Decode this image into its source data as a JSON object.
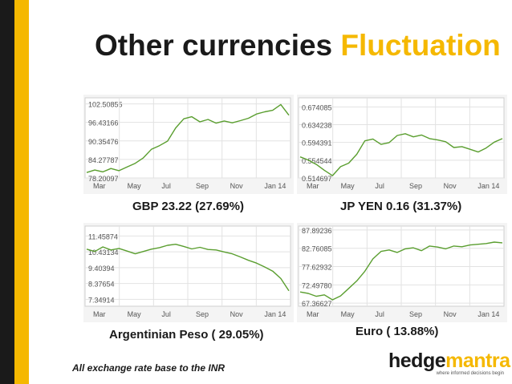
{
  "title": {
    "main": "Other currencies",
    "accent": "Fluctuation"
  },
  "footnote": "All exchange rate base to the INR",
  "logo": {
    "part1": "hedge",
    "part2": "mantra",
    "tagline": "where informed decisions begin"
  },
  "colors": {
    "accent": "#f5b800",
    "dark": "#1a1a1a",
    "line": "#5a9e2f"
  },
  "chart_data": [
    {
      "type": "line",
      "caption": "GBP 23.22 (27.69%)",
      "yticks": [
        "102.50855",
        "96.43166",
        "90.35476",
        "84.27787",
        "78.20097"
      ],
      "ytick_values": [
        102.50855,
        96.43166,
        90.35476,
        84.27787,
        78.20097
      ],
      "xticks": [
        "Mar",
        "May",
        "Jul",
        "Sep",
        "Nov",
        "Jan 14"
      ],
      "ylim": [
        78.2,
        104.5
      ],
      "series": [
        {
          "values": [
            80.0,
            80.8,
            80.2,
            81.3,
            80.6,
            81.8,
            83.0,
            84.8,
            87.6,
            88.8,
            90.3,
            94.6,
            97.6,
            98.3,
            96.6,
            97.4,
            96.2,
            96.9,
            96.3,
            97.0,
            97.8,
            99.2,
            99.9,
            100.4,
            102.3,
            98.8
          ]
        }
      ]
    },
    {
      "type": "line",
      "caption": "JP YEN 0.16 (31.37%)",
      "yticks": [
        "0.674085",
        "0.634238",
        "0.594391",
        "0.554544",
        "0.514697"
      ],
      "ytick_values": [
        0.674085,
        0.634238,
        0.594391,
        0.554544,
        0.514697
      ],
      "xticks": [
        "Mar",
        "May",
        "Jul",
        "Sep",
        "Nov",
        "Jan 14"
      ],
      "ylim": [
        0.5147,
        0.6945
      ],
      "series": [
        {
          "values": [
            0.562,
            0.555,
            0.545,
            0.532,
            0.52,
            0.54,
            0.548,
            0.568,
            0.598,
            0.602,
            0.59,
            0.594,
            0.61,
            0.614,
            0.607,
            0.611,
            0.603,
            0.6,
            0.596,
            0.583,
            0.585,
            0.579,
            0.573,
            0.582,
            0.595,
            0.603
          ]
        }
      ]
    },
    {
      "type": "line",
      "caption": "Argentinian Peso ( 29.05%)",
      "yticks": [
        "11.45874",
        "10.43134",
        "9.40394",
        "8.37654",
        "7.34914"
      ],
      "ytick_values": [
        11.45874,
        10.43134,
        9.40394,
        8.37654,
        7.34914
      ],
      "xticks": [
        "Mar",
        "May",
        "Jul",
        "Sep",
        "Nov",
        "Jan 14"
      ],
      "ylim": [
        6.9,
        12.1
      ],
      "series": [
        {
          "values": [
            10.6,
            10.45,
            10.75,
            10.55,
            10.65,
            10.48,
            10.3,
            10.45,
            10.6,
            10.7,
            10.85,
            10.92,
            10.78,
            10.62,
            10.72,
            10.58,
            10.55,
            10.42,
            10.3,
            10.1,
            9.88,
            9.7,
            9.45,
            9.18,
            8.7,
            7.9
          ]
        }
      ]
    },
    {
      "type": "line",
      "caption": "Euro ( 13.88%)",
      "yticks": [
        "87.89236",
        "82.76085",
        "77.62932",
        "72.49780",
        "67.36627"
      ],
      "ytick_values": [
        87.89236,
        82.76085,
        77.62932,
        72.4978,
        67.36627
      ],
      "xticks": [
        "Mar",
        "May",
        "Jul",
        "Sep",
        "Nov",
        "Jan 14"
      ],
      "ylim": [
        66.5,
        89.0
      ],
      "series": [
        {
          "values": [
            70.5,
            70.1,
            69.3,
            69.7,
            68.3,
            69.4,
            71.5,
            73.6,
            76.3,
            79.8,
            81.9,
            82.3,
            81.6,
            82.6,
            82.9,
            82.1,
            83.4,
            83.1,
            82.6,
            83.4,
            83.2,
            83.7,
            83.9,
            84.1,
            84.5,
            84.3
          ]
        }
      ]
    }
  ]
}
